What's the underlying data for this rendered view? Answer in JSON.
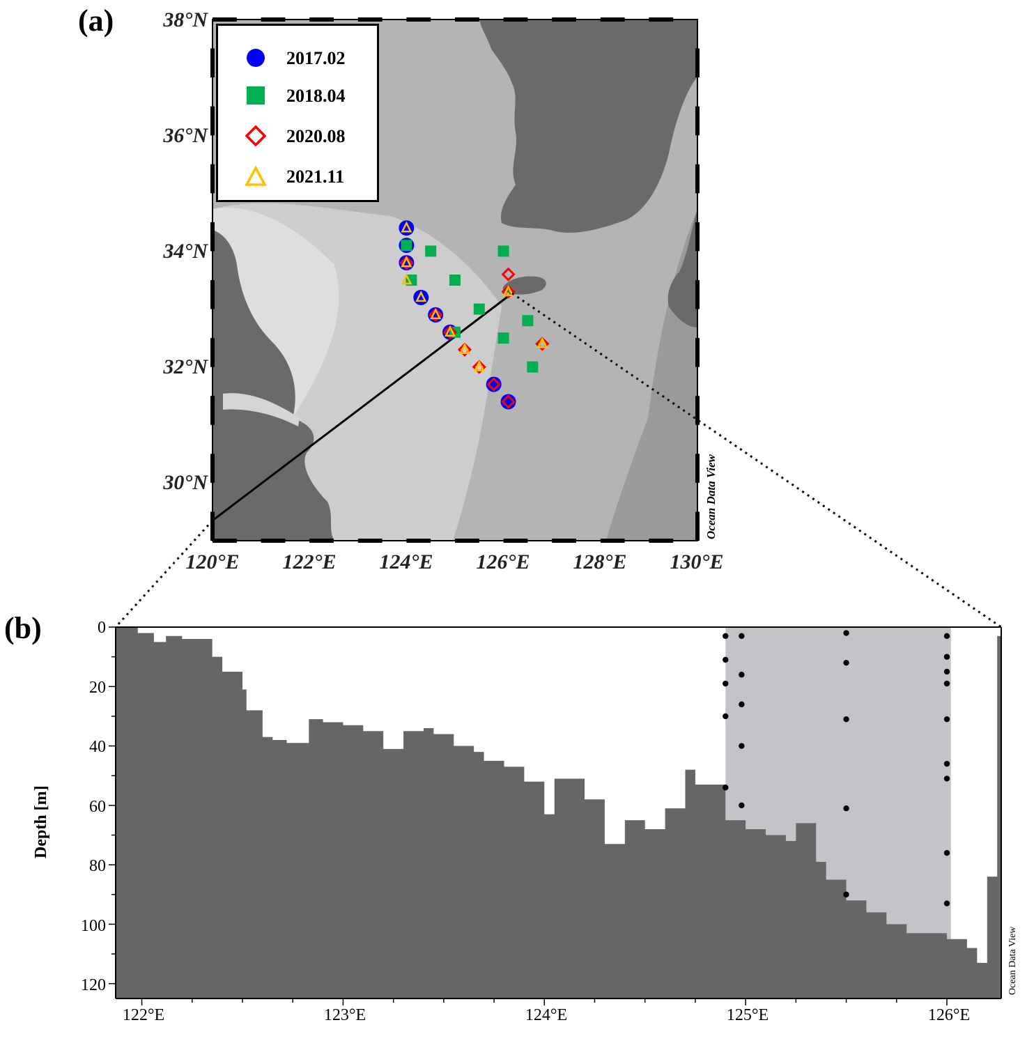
{
  "panel_a": {
    "label": "(a)",
    "lat_labels": [
      "38°N",
      "36°N",
      "34°N",
      "32°N",
      "30°N"
    ],
    "lon_labels": [
      "120°E",
      "122°E",
      "124°E",
      "126°E",
      "128°E",
      "130°E"
    ],
    "legend": [
      {
        "label": "2017.02",
        "symbol": "circle",
        "color": "#0000ff"
      },
      {
        "label": "2018.04",
        "symbol": "square",
        "color": "#00b050"
      },
      {
        "label": "2020.08",
        "symbol": "diamond",
        "color": "#ff0000"
      },
      {
        "label": "2021.11",
        "symbol": "triangle",
        "color": "#ffc000"
      }
    ],
    "credit": "Ocean Data View",
    "stations_2017_02": [
      [
        124.0,
        34.4
      ],
      [
        124.0,
        34.1
      ],
      [
        124.0,
        33.8
      ],
      [
        124.3,
        33.2
      ],
      [
        124.6,
        32.9
      ],
      [
        124.9,
        32.6
      ],
      [
        125.8,
        31.7
      ],
      [
        126.1,
        31.4
      ]
    ],
    "stations_2018_04": [
      [
        124.0,
        34.1
      ],
      [
        124.1,
        33.5
      ],
      [
        124.5,
        34.0
      ],
      [
        125.0,
        33.5
      ],
      [
        125.5,
        33.0
      ],
      [
        126.0,
        34.0
      ],
      [
        126.5,
        32.8
      ],
      [
        126.0,
        32.5
      ],
      [
        126.6,
        32.0
      ],
      [
        125.0,
        32.6
      ]
    ],
    "stations_2020_08": [
      [
        124.0,
        33.8
      ],
      [
        124.6,
        32.9
      ],
      [
        124.9,
        32.6
      ],
      [
        125.2,
        32.3
      ],
      [
        125.5,
        32.0
      ],
      [
        125.8,
        31.7
      ],
      [
        126.1,
        31.4
      ],
      [
        126.1,
        33.6
      ],
      [
        126.1,
        33.3
      ],
      [
        126.8,
        32.4
      ]
    ],
    "stations_2021_11": [
      [
        124.0,
        34.4
      ],
      [
        124.0,
        33.8
      ],
      [
        124.0,
        33.5
      ],
      [
        124.3,
        33.2
      ],
      [
        124.6,
        32.9
      ],
      [
        124.9,
        32.6
      ],
      [
        125.2,
        32.3
      ],
      [
        125.5,
        32.0
      ],
      [
        126.8,
        32.4
      ],
      [
        126.1,
        33.3
      ]
    ],
    "transect": {
      "start": [
        120.0,
        29.4
      ],
      "end": [
        126.2,
        33.2
      ]
    }
  },
  "panel_b": {
    "label": "(b)",
    "ylabel": "Depth [m]",
    "yticks": [
      "0",
      "20",
      "40",
      "60",
      "80",
      "100",
      "120"
    ],
    "xticks": [
      "122°E",
      "123°E",
      "124°E",
      "125°E",
      "126°E"
    ],
    "credit": "Ocean Data View"
  },
  "chart_data": {
    "type": "scatter",
    "title": "",
    "xlabel": "",
    "ylabel": "Depth [m]",
    "xlim": [
      121.87,
      126.27
    ],
    "ylim": [
      0,
      125
    ],
    "y_inverted": true,
    "bathymetry": {
      "lon": [
        121.87,
        121.98,
        122.06,
        122.12,
        122.2,
        122.35,
        122.4,
        122.5,
        122.52,
        122.6,
        122.65,
        122.72,
        122.83,
        122.9,
        123.0,
        123.1,
        123.2,
        123.3,
        123.4,
        123.45,
        123.55,
        123.65,
        123.7,
        123.8,
        123.9,
        124.0,
        124.05,
        124.2,
        124.3,
        124.4,
        124.5,
        124.6,
        124.7,
        124.75,
        124.9,
        125.0,
        125.1,
        125.2,
        125.25,
        125.35,
        125.4,
        125.5,
        125.6,
        125.7,
        125.8,
        126.0,
        126.1,
        126.15,
        126.2,
        126.25,
        126.27
      ],
      "depth": [
        0,
        2,
        5,
        3,
        4,
        10,
        15,
        21,
        28,
        37,
        38,
        39,
        31,
        32,
        33,
        35,
        41,
        35,
        34,
        36,
        40,
        42,
        45,
        47,
        52,
        63,
        51,
        58,
        73,
        65,
        68,
        61,
        48,
        53,
        65,
        68,
        70,
        72,
        66,
        79,
        85,
        92,
        96,
        100,
        103,
        105,
        108,
        113,
        84,
        3,
        0
      ]
    },
    "sampled_area": {
      "lon_range": [
        124.9,
        126.02
      ]
    },
    "sample_points": [
      {
        "x": 124.9,
        "y": 3
      },
      {
        "x": 124.9,
        "y": 11
      },
      {
        "x": 124.9,
        "y": 19
      },
      {
        "x": 124.9,
        "y": 30
      },
      {
        "x": 124.9,
        "y": 54
      },
      {
        "x": 124.98,
        "y": 3
      },
      {
        "x": 124.98,
        "y": 16
      },
      {
        "x": 124.98,
        "y": 26
      },
      {
        "x": 124.98,
        "y": 40
      },
      {
        "x": 124.98,
        "y": 60
      },
      {
        "x": 125.5,
        "y": 2
      },
      {
        "x": 125.5,
        "y": 12
      },
      {
        "x": 125.5,
        "y": 31
      },
      {
        "x": 125.5,
        "y": 61
      },
      {
        "x": 125.5,
        "y": 90
      },
      {
        "x": 126.0,
        "y": 3
      },
      {
        "x": 126.0,
        "y": 10
      },
      {
        "x": 126.0,
        "y": 15
      },
      {
        "x": 126.0,
        "y": 19
      },
      {
        "x": 126.0,
        "y": 31
      },
      {
        "x": 126.0,
        "y": 46
      },
      {
        "x": 126.0,
        "y": 51
      },
      {
        "x": 126.0,
        "y": 76
      },
      {
        "x": 126.0,
        "y": 93
      }
    ]
  }
}
